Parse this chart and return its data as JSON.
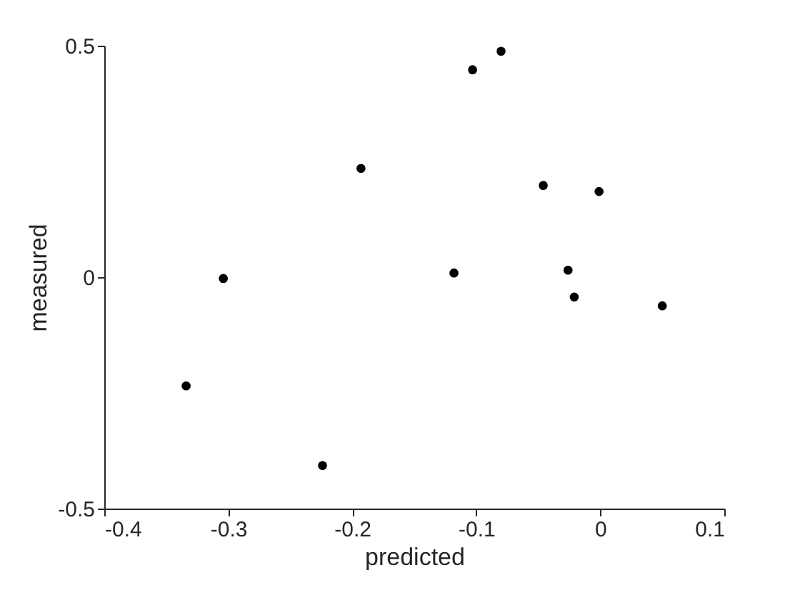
{
  "chart_data": {
    "type": "scatter",
    "xlabel": "predicted",
    "ylabel": "measured",
    "x": [
      -0.334,
      -0.304,
      -0.224,
      -0.193,
      -0.118,
      -0.103,
      -0.08,
      -0.046,
      -0.026,
      -0.021,
      -0.001,
      0.05
    ],
    "series": [
      {
        "color": "#000000",
        "values": [
          -0.235,
          -0.003,
          -0.407,
          0.235,
          0.009,
          0.448,
          0.488,
          0.198,
          0.015,
          -0.043,
          0.185,
          -0.062
        ]
      }
    ],
    "xlim": [
      -0.4,
      0.1
    ],
    "xticks": [
      -0.4,
      -0.3,
      -0.2,
      -0.1,
      0,
      0.1
    ],
    "ylim": [
      -0.5,
      0.5
    ],
    "yticks": [
      -0.5,
      0,
      0.5
    ],
    "marker": "circle",
    "grid": false
  }
}
